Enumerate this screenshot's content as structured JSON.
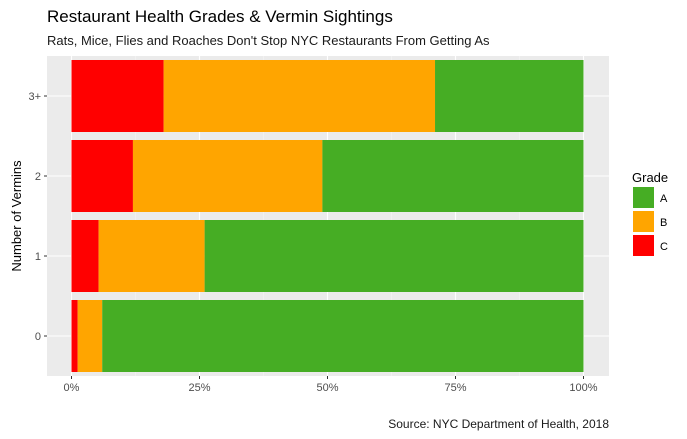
{
  "chart_data": {
    "type": "bar",
    "orientation": "horizontal",
    "stacked": true,
    "title": "Restaurant Health Grades & Vermin Sightings",
    "subtitle": "Rats, Mice, Flies and Roaches Don't Stop NYC Restaurants From Getting As",
    "caption": "Source: NYC Department of Health, 2018",
    "ylabel": "Number of Vermins",
    "xlabel": "",
    "categories": [
      "0",
      "1",
      "2",
      "3+"
    ],
    "xlim": [
      0,
      1
    ],
    "x_ticks": [
      0,
      0.25,
      0.5,
      0.75,
      1
    ],
    "x_tick_labels": [
      "0%",
      "25%",
      "50%",
      "75%",
      "100%"
    ],
    "grid": true,
    "legend": {
      "title": "Grade",
      "position": "right",
      "entries": [
        "A",
        "B",
        "C"
      ]
    },
    "stack_order": [
      "C",
      "B",
      "A"
    ],
    "series": [
      {
        "name": "A",
        "color": "#46ad24",
        "values": [
          0.94,
          0.74,
          0.51,
          0.29
        ]
      },
      {
        "name": "B",
        "color": "#ffa500",
        "values": [
          0.048,
          0.207,
          0.37,
          0.53
        ]
      },
      {
        "name": "C",
        "color": "#ff0000",
        "values": [
          0.012,
          0.053,
          0.12,
          0.18
        ]
      }
    ]
  }
}
